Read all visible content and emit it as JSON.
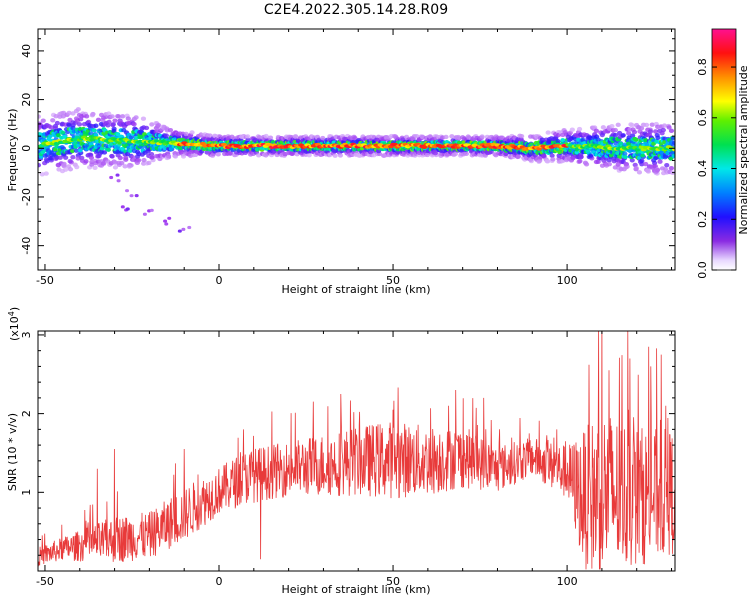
{
  "title": "C2E4.2022.305.14.28.R09",
  "chart_data": [
    {
      "type": "heatmap",
      "xlabel": "Height of straight line (km)",
      "ylabel": "Frequency (Hz)",
      "xlim": [
        -52,
        131
      ],
      "ylim": [
        -50,
        49
      ],
      "xticks": [
        -50,
        0,
        50,
        100
      ],
      "yticks": [
        40,
        20,
        0,
        -20,
        -40
      ],
      "colorbar": {
        "label": "Normalized spectral amplitude",
        "range": [
          0.0,
          0.95
        ],
        "ticks": [
          "0.0",
          "0.2",
          "0.4",
          "0.6",
          "0.8"
        ],
        "tick_values": [
          0.0,
          0.2,
          0.4,
          0.6,
          0.8
        ],
        "colormap": "rainbow (white-violet-blue-cyan-green-yellow-orange-red-magenta)"
      },
      "ridge": {
        "description": "Narrow high-amplitude band near 0 Hz across all heights; broader noisy spread for heights below -10 km and above 100 km",
        "center_frequency_hz": [
          [
            -52,
            1
          ],
          [
            -40,
            4
          ],
          [
            -25,
            3
          ],
          [
            -12,
            2
          ],
          [
            0,
            1
          ],
          [
            50,
            1
          ],
          [
            80,
            1
          ],
          [
            90,
            0
          ],
          [
            100,
            1
          ],
          [
            120,
            0
          ],
          [
            131,
            0
          ]
        ],
        "half_width_hz": [
          [
            -52,
            9
          ],
          [
            -40,
            9
          ],
          [
            -25,
            8
          ],
          [
            -12,
            4
          ],
          [
            0,
            3
          ],
          [
            50,
            3
          ],
          [
            80,
            3
          ],
          [
            100,
            5
          ],
          [
            115,
            7
          ],
          [
            131,
            8
          ]
        ],
        "scatter_below": [
          [
            -30,
            -12
          ],
          [
            -25,
            -18
          ],
          [
            -27,
            -24
          ],
          [
            -20,
            -26
          ],
          [
            -15,
            -30
          ],
          [
            -10,
            -33
          ]
        ]
      }
    },
    {
      "type": "line",
      "xlabel": "Height of straight line (km)",
      "ylabel": "SNR (10 * v/v)",
      "scale_label": "(x10",
      "scale_exp": "4",
      "scale_close": ")",
      "xlim": [
        -52,
        131
      ],
      "ylim": [
        0,
        3.05
      ],
      "xticks": [
        -50,
        0,
        50,
        100
      ],
      "yticks": [
        1,
        2,
        3
      ],
      "color": "#e83a3a",
      "series": [
        {
          "envelope": {
            "x": [
              -52,
              -45,
              -40,
              -30,
              -20,
              -10,
              0,
              8,
              20,
              30,
              40,
              50,
              60,
              70,
              80,
              90,
              100,
              105,
              110,
              120,
              131
            ],
            "base": [
              0.18,
              0.28,
              0.32,
              0.4,
              0.45,
              0.72,
              1.02,
              1.2,
              1.3,
              1.35,
              1.4,
              1.42,
              1.4,
              1.45,
              1.3,
              1.45,
              1.25,
              0.9,
              1.0,
              0.95,
              1.0
            ],
            "spread": [
              0.12,
              0.15,
              0.2,
              0.3,
              0.3,
              0.35,
              0.3,
              0.35,
              0.35,
              0.4,
              0.45,
              0.5,
              0.45,
              0.4,
              0.3,
              0.25,
              0.35,
              0.9,
              1.1,
              0.9,
              0.8
            ]
          },
          "spikes": [
            [
              -30,
              1.55
            ],
            [
              -35,
              1.3
            ],
            [
              -10,
              1.55
            ],
            [
              7,
              1.8
            ],
            [
              12,
              0.15
            ],
            [
              35,
              2.25
            ],
            [
              50,
              2.05
            ],
            [
              66,
              2.1
            ],
            [
              76,
              2.2
            ],
            [
              97,
              1.8
            ],
            [
              109,
              3.05
            ],
            [
              112,
              2.55
            ],
            [
              118,
              2.7
            ],
            [
              127,
              2.75
            ]
          ]
        }
      ]
    }
  ]
}
